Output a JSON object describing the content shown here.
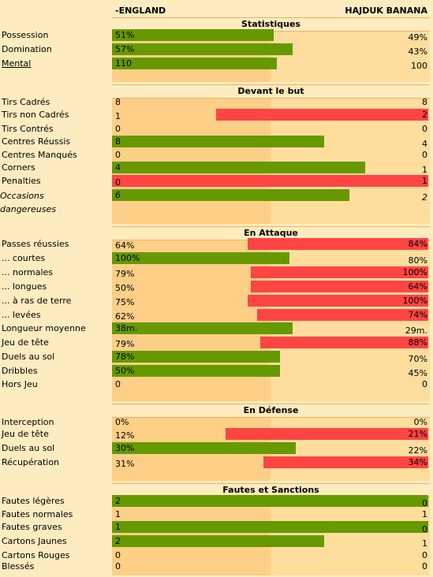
{
  "teams": {
    "home": "-ENGLAND",
    "away": "HAJDUK BANANA"
  },
  "colors": {
    "home_bar": "#669900",
    "away_bar": "#ff4444",
    "home_col": "#fdcf87",
    "away_col": "#fedd9d",
    "page": "#fdecc0"
  },
  "sections": [
    {
      "title": "Statistiques",
      "rows": [
        {
          "label": "Possession",
          "home": "51%",
          "away": "49%",
          "bar": "home",
          "frac": 0.51
        },
        {
          "label": "Domination",
          "home": "57%",
          "away": "43%",
          "bar": "home",
          "frac": 0.57
        },
        {
          "label": "Mental",
          "home": "110",
          "away": "100",
          "bar": "home",
          "frac": 0.52
        }
      ]
    },
    {
      "title": "Devant le but",
      "rows": [
        {
          "label": "Tirs Cadrés",
          "home": "8",
          "away": "8",
          "bar": "none",
          "frac": 0
        },
        {
          "label": "Tirs non Cadrés",
          "home": "1",
          "away": "2",
          "bar": "away",
          "frac": 0.67
        },
        {
          "label": "Tirs Contrés",
          "home": "0",
          "away": "0",
          "bar": "none",
          "frac": 0
        },
        {
          "label": "Centres Réussis",
          "home": "8",
          "away": "4",
          "bar": "home",
          "frac": 0.67
        },
        {
          "label": "Centres Manqués",
          "home": "0",
          "away": "0",
          "bar": "none",
          "frac": 0
        },
        {
          "label": "Corners",
          "home": "4",
          "away": "1",
          "bar": "home",
          "frac": 0.8
        },
        {
          "label": "Penalties",
          "home": "0",
          "away": "1",
          "bar": "away",
          "frac": 1.0
        },
        {
          "label": "Occasions dangereuses",
          "home": "6",
          "away": "2",
          "bar": "home",
          "frac": 0.75
        }
      ]
    },
    {
      "title": "En Attaque",
      "rows": [
        {
          "label": "Passes réussies",
          "home": "64%",
          "away": "84%",
          "bar": "away",
          "frac": 0.57
        },
        {
          "label": "... courtes",
          "home": "100%",
          "away": "80%",
          "bar": "home",
          "frac": 0.56
        },
        {
          "label": "... normales",
          "home": "79%",
          "away": "100%",
          "bar": "away",
          "frac": 0.56
        },
        {
          "label": "... longues",
          "home": "50%",
          "away": "64%",
          "bar": "away",
          "frac": 0.56
        },
        {
          "label": "... à ras de terre",
          "home": "75%",
          "away": "100%",
          "bar": "away",
          "frac": 0.57
        },
        {
          "label": "... levées",
          "home": "62%",
          "away": "74%",
          "bar": "away",
          "frac": 0.54
        },
        {
          "label": "Longueur moyenne",
          "home": "38m.",
          "away": "29m.",
          "bar": "home",
          "frac": 0.57
        },
        {
          "label": "Jeu de tête",
          "home": "79%",
          "away": "88%",
          "bar": "away",
          "frac": 0.53
        },
        {
          "label": "Duels au sol",
          "home": "78%",
          "away": "70%",
          "bar": "home",
          "frac": 0.53
        },
        {
          "label": "Dribbles",
          "home": "50%",
          "away": "45%",
          "bar": "home",
          "frac": 0.53
        },
        {
          "label": "Hors Jeu",
          "home": "0",
          "away": "0",
          "bar": "none",
          "frac": 0
        }
      ]
    },
    {
      "title": "En Défense",
      "rows": [
        {
          "label": "Interception",
          "home": "0%",
          "away": "0%",
          "bar": "none",
          "frac": 0
        },
        {
          "label": "Jeu de tête",
          "home": "12%",
          "away": "21%",
          "bar": "away",
          "frac": 0.64
        },
        {
          "label": "Duels au sol",
          "home": "30%",
          "away": "22%",
          "bar": "home",
          "frac": 0.58
        },
        {
          "label": "Récupération",
          "home": "31%",
          "away": "34%",
          "bar": "away",
          "frac": 0.52
        }
      ]
    },
    {
      "title": "Fautes et Sanctions",
      "rows": [
        {
          "label": "Fautes légères",
          "home": "2",
          "away": "0",
          "bar": "home",
          "frac": 1.0
        },
        {
          "label": "Fautes normales",
          "home": "1",
          "away": "1",
          "bar": "none",
          "frac": 0
        },
        {
          "label": "Fautes graves",
          "home": "1",
          "away": "0",
          "bar": "home",
          "frac": 1.0
        },
        {
          "label": "Cartons Jaunes",
          "home": "2",
          "away": "1",
          "bar": "home",
          "frac": 0.67
        },
        {
          "label": "Cartons Rouges",
          "home": "0",
          "away": "0",
          "bar": "none",
          "frac": 0
        },
        {
          "label": "Blessés",
          "home": "0",
          "away": "0",
          "bar": "none",
          "frac": 0
        }
      ]
    }
  ]
}
